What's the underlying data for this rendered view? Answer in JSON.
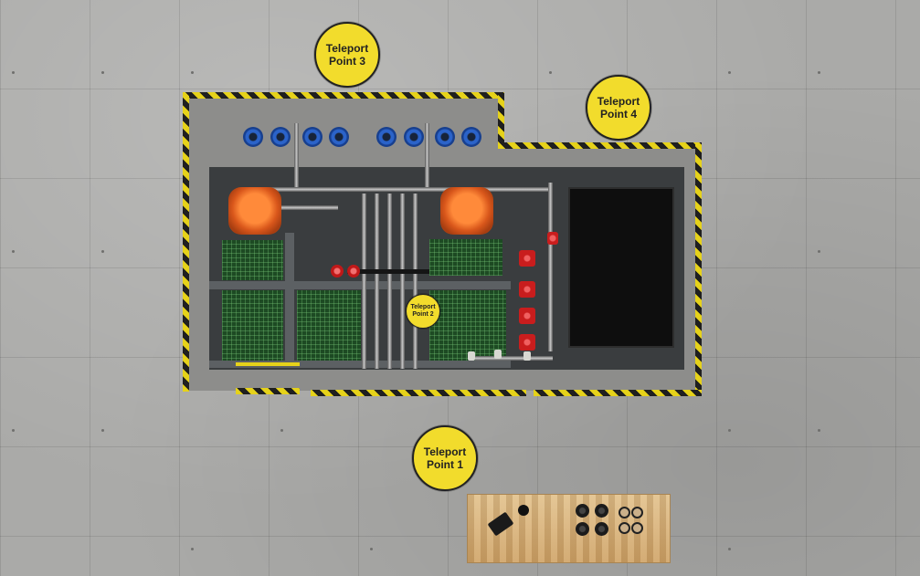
{
  "scene": {
    "teleport_points": [
      {
        "id": 1,
        "label": "Teleport\nPoint 1"
      },
      {
        "id": 2,
        "label": "Teleport\nPoint 2"
      },
      {
        "id": 3,
        "label": "Teleport\nPoint 3"
      },
      {
        "id": 4,
        "label": "Teleport\nPoint 4"
      }
    ],
    "colors": {
      "hazard_yellow": "#e6d21a",
      "teleport_marker": "#f2dc2c",
      "grating_green": "#1d4a23",
      "pump_blue": "#2b63c9",
      "motor_orange": "#d9571b",
      "valve_red": "#c91d1d",
      "table_wood": "#d9b47c"
    },
    "icons": {
      "teleport": "circle-marker-icon",
      "pump": "blue-pump-icon",
      "motor": "orange-motor-icon",
      "valve": "red-valve-icon"
    }
  }
}
